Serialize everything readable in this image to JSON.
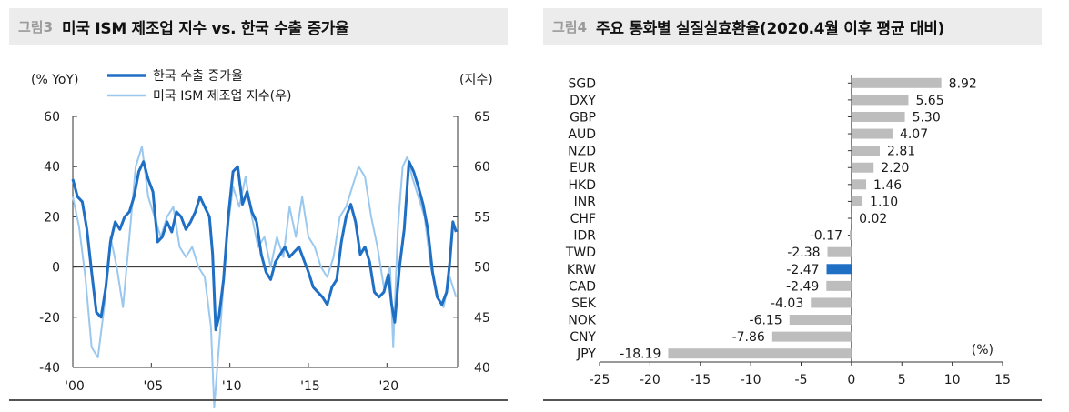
{
  "left": {
    "fig_label": "그림3",
    "title": "미국 ISM 제조업 지수 vs. 한국 수출 증가율",
    "left_unit": "(% YoY)",
    "right_unit": "(지수)",
    "legend": [
      "한국 수출 증가율",
      "미국 ISM 제조업 지수(우)"
    ],
    "colors": {
      "export": "#1f6fc5",
      "ism": "#9bc8ee"
    }
  },
  "right": {
    "fig_label": "그림4",
    "title": "주요 통화별 실질실효환율(2020.4월 이후 평균 대비)",
    "unit": "(%)",
    "colors": {
      "bar": "#bdbdbd",
      "highlight": "#1f6fc5"
    }
  },
  "chart_data": [
    {
      "type": "line",
      "x_tick_labels": [
        "'00",
        "'05",
        "'10",
        "'15",
        "'20"
      ],
      "x_ticks": [
        2000,
        2005,
        2010,
        2015,
        2020
      ],
      "xlim": [
        2000,
        2024.5
      ],
      "ylim": [
        -40,
        60
      ],
      "y_ticks": [
        -40,
        -20,
        0,
        20,
        40,
        60
      ],
      "y2lim": [
        40,
        65
      ],
      "y2_ticks": [
        40,
        45,
        50,
        55,
        60,
        65
      ],
      "series": [
        {
          "name": "한국 수출 증가율",
          "axis": "left",
          "x": [
            2000.0,
            2000.3,
            2000.6,
            2000.9,
            2001.2,
            2001.5,
            2001.8,
            2002.1,
            2002.4,
            2002.7,
            2003.0,
            2003.3,
            2003.6,
            2003.9,
            2004.2,
            2004.5,
            2004.8,
            2005.1,
            2005.4,
            2005.7,
            2006.0,
            2006.3,
            2006.6,
            2006.9,
            2007.2,
            2007.5,
            2007.8,
            2008.1,
            2008.4,
            2008.7,
            2008.9,
            2009.1,
            2009.3,
            2009.6,
            2009.9,
            2010.2,
            2010.5,
            2010.8,
            2011.1,
            2011.4,
            2011.7,
            2012.0,
            2012.3,
            2012.6,
            2012.9,
            2013.2,
            2013.5,
            2013.8,
            2014.1,
            2014.4,
            2014.7,
            2015.0,
            2015.3,
            2015.6,
            2015.9,
            2016.2,
            2016.5,
            2016.8,
            2017.1,
            2017.4,
            2017.7,
            2018.0,
            2018.3,
            2018.6,
            2018.9,
            2019.2,
            2019.5,
            2019.8,
            2020.1,
            2020.3,
            2020.5,
            2020.8,
            2021.1,
            2021.4,
            2021.7,
            2022.0,
            2022.3,
            2022.6,
            2022.9,
            2023.2,
            2023.5,
            2023.8,
            2024.0,
            2024.2,
            2024.4
          ],
          "values": [
            35,
            28,
            26,
            15,
            -2,
            -18,
            -20,
            -8,
            10,
            18,
            15,
            20,
            22,
            28,
            38,
            42,
            35,
            30,
            10,
            12,
            18,
            14,
            22,
            20,
            15,
            18,
            22,
            28,
            24,
            20,
            5,
            -25,
            -20,
            -5,
            20,
            38,
            40,
            25,
            30,
            22,
            18,
            5,
            -2,
            -5,
            2,
            5,
            8,
            4,
            6,
            8,
            3,
            -2,
            -8,
            -10,
            -12,
            -15,
            -8,
            -5,
            10,
            20,
            25,
            18,
            5,
            8,
            2,
            -10,
            -12,
            -10,
            -3,
            -15,
            -22,
            0,
            15,
            42,
            38,
            32,
            25,
            15,
            -2,
            -12,
            -15,
            -10,
            2,
            18,
            14
          ]
        },
        {
          "name": "미국 ISM 제조업 지수(우)",
          "axis": "right",
          "x": [
            2000.0,
            2000.4,
            2000.8,
            2001.2,
            2001.6,
            2002.0,
            2002.4,
            2002.8,
            2003.2,
            2003.6,
            2004.0,
            2004.4,
            2004.8,
            2005.2,
            2005.6,
            2006.0,
            2006.4,
            2006.8,
            2007.2,
            2007.6,
            2008.0,
            2008.4,
            2008.8,
            2009.0,
            2009.4,
            2009.8,
            2010.2,
            2010.6,
            2011.0,
            2011.4,
            2011.8,
            2012.2,
            2012.6,
            2013.0,
            2013.4,
            2013.8,
            2014.2,
            2014.6,
            2015.0,
            2015.4,
            2015.8,
            2016.2,
            2016.6,
            2017.0,
            2017.4,
            2017.8,
            2018.2,
            2018.6,
            2019.0,
            2019.4,
            2019.8,
            2020.2,
            2020.4,
            2020.7,
            2021.0,
            2021.3,
            2021.6,
            2022.0,
            2022.4,
            2022.8,
            2023.2,
            2023.6,
            2024.0,
            2024.4
          ],
          "values": [
            57,
            54,
            49,
            42,
            41,
            46,
            53,
            50,
            46,
            53,
            60,
            62,
            57,
            55,
            53,
            55,
            56,
            52,
            51,
            52,
            50,
            49,
            44,
            36,
            44,
            53,
            58,
            56,
            59,
            55,
            52,
            53,
            50,
            53,
            51,
            56,
            53,
            57,
            53,
            52,
            50,
            49,
            51,
            55,
            56,
            58,
            60,
            59,
            55,
            52,
            48,
            50,
            42,
            54,
            60,
            61,
            59,
            57,
            55,
            50,
            47,
            46,
            49,
            47
          ]
        }
      ]
    },
    {
      "type": "bar",
      "orientation": "horizontal",
      "categories": [
        "SGD",
        "DXY",
        "GBP",
        "AUD",
        "NZD",
        "EUR",
        "HKD",
        "INR",
        "CHF",
        "IDR",
        "TWD",
        "KRW",
        "CAD",
        "SEK",
        "NOK",
        "CNY",
        "JPY"
      ],
      "values": [
        8.92,
        5.65,
        5.3,
        4.07,
        2.81,
        2.2,
        1.46,
        1.1,
        0.02,
        -0.17,
        -2.38,
        -2.47,
        -2.49,
        -4.03,
        -6.15,
        -7.86,
        -18.19
      ],
      "value_labels": [
        "8.92",
        "5.65",
        "5.30",
        "4.07",
        "2.81",
        "2.20",
        "1.46",
        "1.10",
        "0.02",
        "-0.17",
        "-2.38",
        "-2.47",
        "-2.49",
        "-4.03",
        "-6.15",
        "-7.86",
        "-18.19"
      ],
      "highlight": "KRW",
      "xlim": [
        -25,
        15
      ],
      "x_ticks": [
        -25,
        -20,
        -15,
        -10,
        -5,
        0,
        5,
        10,
        15
      ],
      "x_tick_labels": [
        "-25",
        "-20",
        "-15",
        "-10",
        "-5",
        "0",
        "5",
        "10",
        "15"
      ],
      "xlabel": "(%)"
    }
  ]
}
